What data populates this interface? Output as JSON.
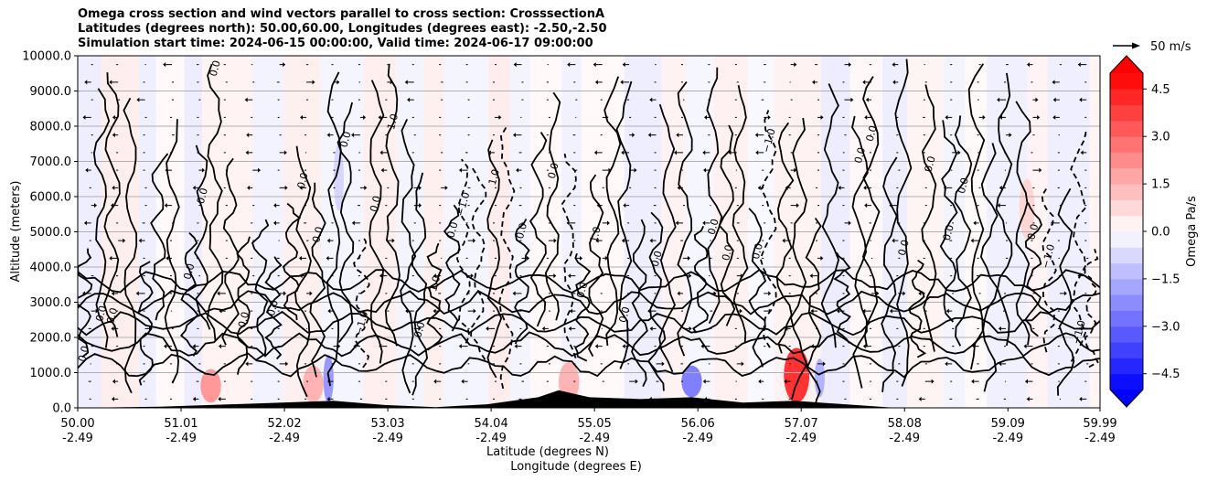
{
  "chart_data": {
    "type": "contour",
    "title_lines": [
      "Omega cross section and wind vectors parallel to cross section: CrosssectionA",
      "Latitudes (degrees north): 50.00,60.00, Longitudes (degrees east): -2.50,-2.50",
      "Simulation start time: 2024-06-15 00:00:00, Valid time: 2024-06-17 09:00:00"
    ],
    "xlabel_lines": [
      "Latitude (degrees N)",
      "Longitude (degrees E)"
    ],
    "ylabel": "Altitude (meters)",
    "x_ticks": [
      {
        "lat": "50.00",
        "lon": "-2.49",
        "value": 50.0
      },
      {
        "lat": "51.01",
        "lon": "-2.49",
        "value": 51.01
      },
      {
        "lat": "52.02",
        "lon": "-2.49",
        "value": 52.02
      },
      {
        "lat": "53.03",
        "lon": "-2.49",
        "value": 53.03
      },
      {
        "lat": "54.04",
        "lon": "-2.49",
        "value": 54.04
      },
      {
        "lat": "55.05",
        "lon": "-2.49",
        "value": 55.05
      },
      {
        "lat": "56.06",
        "lon": "-2.49",
        "value": 56.06
      },
      {
        "lat": "57.07",
        "lon": "-2.49",
        "value": 57.07
      },
      {
        "lat": "58.08",
        "lon": "-2.49",
        "value": 58.08
      },
      {
        "lat": "59.09",
        "lon": "-2.49",
        "value": 59.09
      },
      {
        "lat": "59.99",
        "lon": "-2.49",
        "value": 59.99
      }
    ],
    "y_ticks": [
      {
        "label": "0.0",
        "value": 0
      },
      {
        "label": "1000.0",
        "value": 1000
      },
      {
        "label": "2000.0",
        "value": 2000
      },
      {
        "label": "3000.0",
        "value": 3000
      },
      {
        "label": "4000.0",
        "value": 4000
      },
      {
        "label": "5000.0",
        "value": 5000
      },
      {
        "label": "6000.0",
        "value": 6000
      },
      {
        "label": "7000.0",
        "value": 7000
      },
      {
        "label": "8000.0",
        "value": 8000
      },
      {
        "label": "9000.0",
        "value": 9000
      },
      {
        "label": "10000.0",
        "value": 10000
      }
    ],
    "xlim": [
      50.0,
      59.99
    ],
    "ylim": [
      0,
      10000
    ],
    "grid": "horizontal",
    "colorbar": {
      "label": "Omega Pa/s",
      "extend": "both",
      "ticks": [
        {
          "label": "4.5",
          "value": 4.5
        },
        {
          "label": "3.0",
          "value": 3.0
        },
        {
          "label": "1.5",
          "value": 1.5
        },
        {
          "label": "0.0",
          "value": 0.0
        },
        {
          "label": "−1.5",
          "value": -1.5
        },
        {
          "label": "−3.0",
          "value": -3.0
        },
        {
          "label": "−4.5",
          "value": -4.5
        }
      ],
      "range": [
        -5.0,
        5.0
      ],
      "levels": 20,
      "colormap": "bwr",
      "positive_color": "#ff0000",
      "negative_color": "#0000ff",
      "mid_color": "#ffffff"
    },
    "quiver_key": {
      "label": "50 m/s",
      "speed": 50
    },
    "contour_labels": [
      "0.0",
      "1.0",
      "−1.0"
    ],
    "regions": [
      {
        "sign": "positive",
        "lat": [
          51.2,
          51.4
        ],
        "alt": [
          150,
          1100
        ],
        "value": 2.0
      },
      {
        "sign": "positive",
        "lat": [
          52.2,
          52.4
        ],
        "alt": [
          150,
          1200
        ],
        "value": 1.5
      },
      {
        "sign": "positive",
        "lat": [
          54.7,
          54.9
        ],
        "alt": [
          150,
          1300
        ],
        "value": 1.5
      },
      {
        "sign": "positive",
        "lat": [
          56.9,
          57.15
        ],
        "alt": [
          150,
          1700
        ],
        "value": 4.0
      },
      {
        "sign": "positive",
        "lat": [
          59.2,
          59.35
        ],
        "alt": [
          4800,
          6500
        ],
        "value": 0.8
      },
      {
        "sign": "negative",
        "lat": [
          52.4,
          52.5
        ],
        "alt": [
          150,
          1500
        ],
        "value": -2.0
      },
      {
        "sign": "negative",
        "lat": [
          55.9,
          56.1
        ],
        "alt": [
          300,
          1200
        ],
        "value": -2.5
      },
      {
        "sign": "negative",
        "lat": [
          57.2,
          57.3
        ],
        "alt": [
          300,
          1400
        ],
        "value": -1.5
      },
      {
        "sign": "negative",
        "lat": [
          52.5,
          52.6
        ],
        "alt": [
          5600,
          7500
        ],
        "value": -0.8
      }
    ],
    "terrain": [
      {
        "lat": 50.0,
        "alt": 0
      },
      {
        "lat": 50.8,
        "alt": 30
      },
      {
        "lat": 51.5,
        "alt": 100
      },
      {
        "lat": 52.0,
        "alt": 150
      },
      {
        "lat": 52.5,
        "alt": 200
      },
      {
        "lat": 53.0,
        "alt": 80
      },
      {
        "lat": 53.5,
        "alt": 20
      },
      {
        "lat": 54.0,
        "alt": 100
      },
      {
        "lat": 54.5,
        "alt": 300
      },
      {
        "lat": 54.7,
        "alt": 500
      },
      {
        "lat": 55.0,
        "alt": 300
      },
      {
        "lat": 55.5,
        "alt": 250
      },
      {
        "lat": 56.0,
        "alt": 300
      },
      {
        "lat": 56.5,
        "alt": 150
      },
      {
        "lat": 57.0,
        "alt": 200
      },
      {
        "lat": 57.5,
        "alt": 100
      },
      {
        "lat": 58.0,
        "alt": 0
      },
      {
        "lat": 59.99,
        "alt": 0
      }
    ]
  }
}
